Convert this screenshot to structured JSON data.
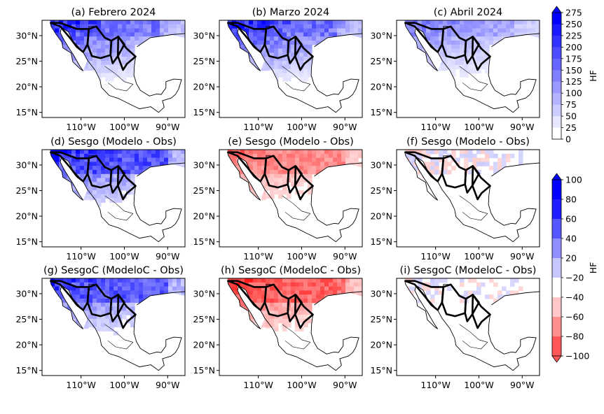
{
  "figure": {
    "description_free": true
  },
  "chart_data": {
    "type": "heatmap",
    "panels": [
      {
        "title": "(a) Febrero 2024",
        "kind": "mean",
        "intensity": 0.85
      },
      {
        "title": "(b) Marzo 2024",
        "kind": "mean",
        "intensity": 0.9
      },
      {
        "title": "(c) Abril 2024",
        "kind": "mean",
        "intensity": 0.55
      },
      {
        "title": "(d) Sesgo (Modelo - Obs)",
        "kind": "bias",
        "bias_sign": 1,
        "intensity": 0.9
      },
      {
        "title": "(e) Sesgo (Modelo - Obs)",
        "kind": "bias",
        "bias_sign": -1,
        "intensity": 0.6
      },
      {
        "title": "(f) Sesgo (Modelo - Obs)",
        "kind": "bias",
        "bias_sign": 0.3,
        "intensity": 0.35
      },
      {
        "title": "(g) SesgoC (ModeloC - Obs)",
        "kind": "bias",
        "bias_sign": 1,
        "intensity": 0.85
      },
      {
        "title": "(h) SesgoC (ModeloC - Obs)",
        "kind": "bias",
        "bias_sign": -1,
        "intensity": 0.8
      },
      {
        "title": "(i) SesgoC (ModeloC - Obs)",
        "kind": "bias",
        "bias_sign": 0.2,
        "intensity": 0.3
      }
    ],
    "lat_ticks": [
      "30°N",
      "25°N",
      "20°N",
      "15°N"
    ],
    "lon_ticks": [
      "110°W",
      "100°W",
      "90°W"
    ],
    "lon_range": [
      -119,
      -86
    ],
    "lat_range": [
      14,
      33
    ],
    "colorbar_top": {
      "label": "HF",
      "levels": [
        0,
        25,
        50,
        75,
        100,
        125,
        150,
        175,
        200,
        225,
        250,
        275
      ],
      "tick_labels": [
        "275",
        "250",
        "225",
        "200",
        "175",
        "150",
        "125",
        "100",
        "75",
        "50",
        "25",
        "0"
      ],
      "extend": "max"
    },
    "colorbar_bottom": {
      "label": "HF",
      "levels": [
        -100,
        -80,
        -60,
        -40,
        -20,
        20,
        40,
        60,
        80,
        100
      ],
      "tick_labels": [
        "100",
        "80",
        "60",
        "40",
        "20",
        "−20",
        "−40",
        "−60",
        "−80",
        "−100"
      ],
      "extend": "both"
    }
  }
}
